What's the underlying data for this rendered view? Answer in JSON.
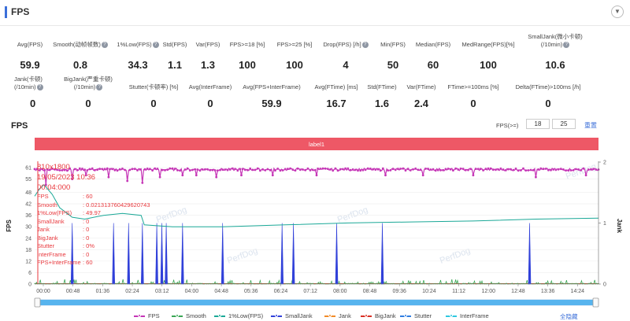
{
  "header": {
    "title": "FPS",
    "collapse_icon": "chevron-down-icon"
  },
  "metrics": {
    "row1": [
      {
        "label": "Avg(FPS)",
        "value": "59.9",
        "help": false
      },
      {
        "label": "Smooth(动帧帧数)",
        "value": "0.8",
        "help": true
      },
      {
        "label": "1%Low(FPS)",
        "value": "34.3",
        "help": true
      },
      {
        "label": "Std(FPS)",
        "value": "1.1",
        "help": false
      },
      {
        "label": "Var(FPS)",
        "value": "1.3",
        "help": false
      },
      {
        "label": "FPS>=18 [%]",
        "value": "100",
        "help": false
      },
      {
        "label": "FPS>=25 [%]",
        "value": "100",
        "help": false
      },
      {
        "label": "Drop(FPS) [/h]",
        "value": "4",
        "help": true
      },
      {
        "label": "Min(FPS)",
        "value": "50",
        "help": false
      },
      {
        "label": "Median(FPS)",
        "value": "60",
        "help": false
      },
      {
        "label": "MedRange(FPS)[%]",
        "value": "100",
        "help": false
      },
      {
        "label1": "SmallJank(微小卡顿)",
        "label2": "(/10min)",
        "value": "10.6",
        "help": true
      }
    ],
    "row2": [
      {
        "label1": "Jank(卡顿)",
        "label2": "(/10min)",
        "value": "0",
        "help": true
      },
      {
        "label1": "BigJank(严重卡顿)",
        "label2": "(/10min)",
        "value": "0",
        "help": true
      },
      {
        "label": "Stutter(卡顿率) [%]",
        "value": "0",
        "help": false
      },
      {
        "label": "Avg(InterFrame)",
        "value": "0",
        "help": false
      },
      {
        "label": "Avg(FPS+InterFrame)",
        "value": "59.9",
        "help": false
      },
      {
        "label": "Avg(FTime) [ms]",
        "value": "16.7",
        "help": false
      },
      {
        "label": "Std(FTime)",
        "value": "1.6",
        "help": false
      },
      {
        "label": "Var(FTime)",
        "value": "2.4",
        "help": false
      },
      {
        "label": "FTime>=100ms [%]",
        "value": "0",
        "help": false
      },
      {
        "label": "Delta(FTime)>100ms [/h]",
        "value": "0",
        "help": false
      }
    ]
  },
  "chart_section": {
    "title": "FPS",
    "threshold_label": "FPS(>=)",
    "threshold1": "18",
    "threshold2": "25",
    "reset_label": "重置",
    "hide_all_label": "全隐藏"
  },
  "chart_data": {
    "type": "line",
    "banner_label": "label1",
    "watermark": "PerfDog",
    "y_left_label": "FPS",
    "y_right_label": "Jank",
    "y_left_ticks": [
      0,
      6,
      12,
      18,
      24,
      30,
      36,
      42,
      48,
      55,
      61
    ],
    "y_right_ticks": [
      0,
      1,
      2
    ],
    "x_ticks": [
      "00:00",
      "00:48",
      "01:36",
      "02:24",
      "03:12",
      "04:00",
      "04:48",
      "05:36",
      "06:24",
      "07:12",
      "08:00",
      "08:48",
      "09:36",
      "10:24",
      "11:12",
      "12:00",
      "12:48",
      "13:36",
      "14:24"
    ],
    "x_range_seconds": [
      0,
      900
    ],
    "ylim_left": [
      0,
      61
    ],
    "ylim_right": [
      0,
      2
    ],
    "series": [
      {
        "name": "FPS",
        "color": "#c535b6",
        "style": "line-dots"
      },
      {
        "name": "Smooth",
        "color": "#3aa655",
        "style": "spikes"
      },
      {
        "name": "1%Low(FPS)",
        "color": "#1aa897",
        "style": "line"
      },
      {
        "name": "SmallJank",
        "color": "#3040d9",
        "style": "spikes"
      },
      {
        "name": "Jank",
        "color": "#f28c28",
        "style": "line"
      },
      {
        "name": "BigJank",
        "color": "#d93025",
        "style": "line"
      },
      {
        "name": "Stutter",
        "color": "#2f7de1",
        "style": "line"
      },
      {
        "name": "InterFrame",
        "color": "#2fc7e0",
        "style": "line"
      }
    ],
    "fps_dips": [
      {
        "t": 18,
        "v": 52
      },
      {
        "t": 60,
        "v": 55
      },
      {
        "t": 82,
        "v": 57
      },
      {
        "t": 118,
        "v": 56
      },
      {
        "t": 148,
        "v": 54
      },
      {
        "t": 165,
        "v": 50
      },
      {
        "t": 172,
        "v": 53
      },
      {
        "t": 200,
        "v": 56
      },
      {
        "t": 236,
        "v": 57
      },
      {
        "t": 258,
        "v": 57
      },
      {
        "t": 290,
        "v": 56
      },
      {
        "t": 330,
        "v": 57
      },
      {
        "t": 380,
        "v": 57
      },
      {
        "t": 450,
        "v": 57
      },
      {
        "t": 560,
        "v": 57
      },
      {
        "t": 620,
        "v": 57
      },
      {
        "t": 700,
        "v": 57
      },
      {
        "t": 800,
        "v": 56
      },
      {
        "t": 880,
        "v": 57
      }
    ],
    "low_pct_points": [
      {
        "t": 0,
        "v": 46
      },
      {
        "t": 8,
        "v": 50
      },
      {
        "t": 15,
        "v": 52
      },
      {
        "t": 28,
        "v": 47
      },
      {
        "t": 40,
        "v": 40
      },
      {
        "t": 60,
        "v": 35
      },
      {
        "t": 80,
        "v": 34
      },
      {
        "t": 110,
        "v": 36
      },
      {
        "t": 140,
        "v": 37
      },
      {
        "t": 170,
        "v": 36
      },
      {
        "t": 175,
        "v": 31
      },
      {
        "t": 220,
        "v": 30
      },
      {
        "t": 300,
        "v": 30
      },
      {
        "t": 400,
        "v": 31
      },
      {
        "t": 500,
        "v": 32
      },
      {
        "t": 600,
        "v": 32.5
      },
      {
        "t": 700,
        "v": 33
      },
      {
        "t": 800,
        "v": 34
      },
      {
        "t": 900,
        "v": 34.5
      }
    ],
    "smalljank_spikes": [
      {
        "t": 60,
        "v": 1
      },
      {
        "t": 126,
        "v": 1
      },
      {
        "t": 150,
        "v": 1
      },
      {
        "t": 172,
        "v": 1
      },
      {
        "t": 195,
        "v": 1
      },
      {
        "t": 203,
        "v": 1
      },
      {
        "t": 210,
        "v": 1
      },
      {
        "t": 236,
        "v": 1
      },
      {
        "t": 300,
        "v": 1
      },
      {
        "t": 395,
        "v": 1
      },
      {
        "t": 413,
        "v": 1
      },
      {
        "t": 482,
        "v": 1
      },
      {
        "t": 555,
        "v": 1
      },
      {
        "t": 790,
        "v": 1
      }
    ],
    "tooltip": {
      "header1": "810x1800",
      "header2": "19/05/2023 10:36",
      "header3": "00:04:000",
      "rows": [
        {
          "k": "FPS",
          "v": ": 60"
        },
        {
          "k": "Smooth",
          "v": ": 0.021313760429620743"
        },
        {
          "k": "1%Low(FPS)",
          "v": ": 49.97"
        },
        {
          "k": "SmallJank",
          "v": ": 0"
        },
        {
          "k": "Jank",
          "v": ": 0"
        },
        {
          "k": "BigJank",
          "v": ": 0"
        },
        {
          "k": "Stutter",
          "v": ": 0%"
        },
        {
          "k": "InterFrame",
          "v": ": 0"
        },
        {
          "k": "FPS+InterFrame",
          "v": ": 60"
        }
      ]
    }
  }
}
